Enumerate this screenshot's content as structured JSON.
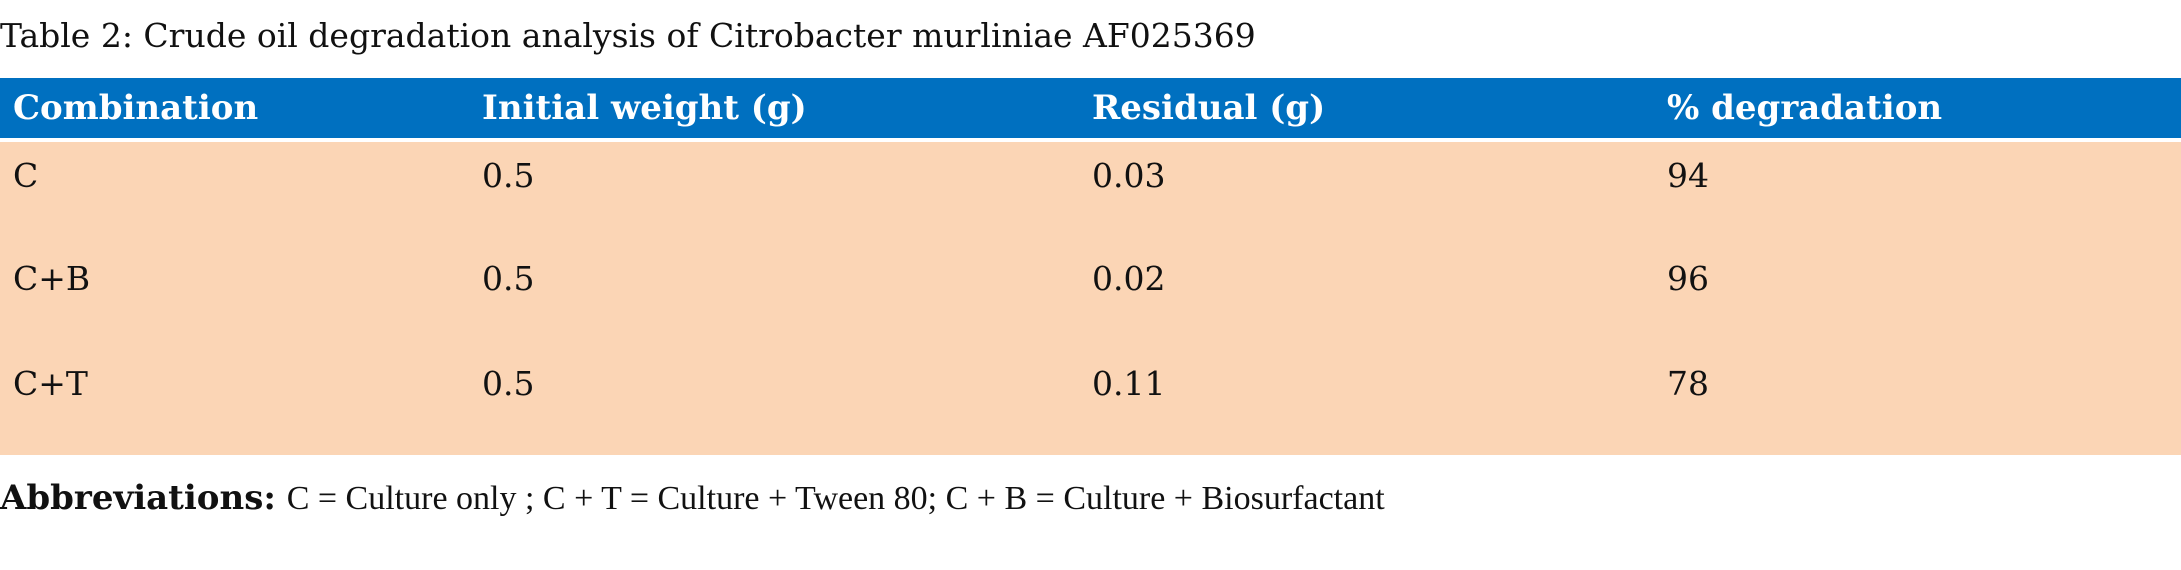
{
  "caption": "Table 2: Crude oil degradation analysis of Citrobacter murliniae AF025369",
  "table": {
    "headers": [
      "Combination",
      "Initial weight (g)",
      "Residual (g)",
      "% degradation"
    ],
    "rows": [
      [
        "C",
        "0.5",
        "0.03",
        "94"
      ],
      [
        "C+B",
        "0.5",
        "0.02",
        "96"
      ],
      [
        "C+T",
        "0.5",
        "0.11",
        "78"
      ]
    ]
  },
  "footnote": {
    "label": "Abbreviations:",
    "text": "C = Culture only ; C + T = Culture + Tween 80; C + B = Culture + Biosurfactant"
  },
  "colors": {
    "header_bg": "#0070c0",
    "header_text": "#ffffff",
    "row_bg": "#fbd5b5"
  }
}
